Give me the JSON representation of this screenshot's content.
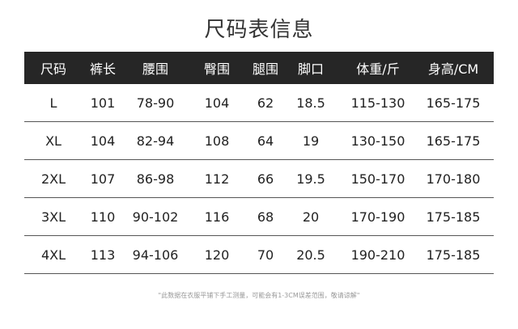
{
  "title": "尺码表信息",
  "table": {
    "headers": [
      "尺码",
      "裤长",
      "腰围",
      "臀围",
      "腿围",
      "脚口",
      "体重/斤",
      "身高/CM"
    ],
    "rows": [
      [
        "L",
        "101",
        "78-90",
        "104",
        "62",
        "18.5",
        "115-130",
        "165-175"
      ],
      [
        "XL",
        "104",
        "82-94",
        "108",
        "64",
        "19",
        "130-150",
        "165-175"
      ],
      [
        "2XL",
        "107",
        "86-98",
        "112",
        "66",
        "19.5",
        "150-170",
        "170-180"
      ],
      [
        "3XL",
        "110",
        "90-102",
        "116",
        "68",
        "20",
        "170-190",
        "175-185"
      ],
      [
        "4XL",
        "113",
        "94-106",
        "120",
        "70",
        "20.5",
        "190-210",
        "175-185"
      ]
    ]
  },
  "note": "\"此数据在衣服平铺下手工测量，可能会有1-3CM误差范围，敬请谅解\"",
  "colors": {
    "header_bg": "#262626",
    "header_text": "#ffffff",
    "divider": "#555555"
  }
}
